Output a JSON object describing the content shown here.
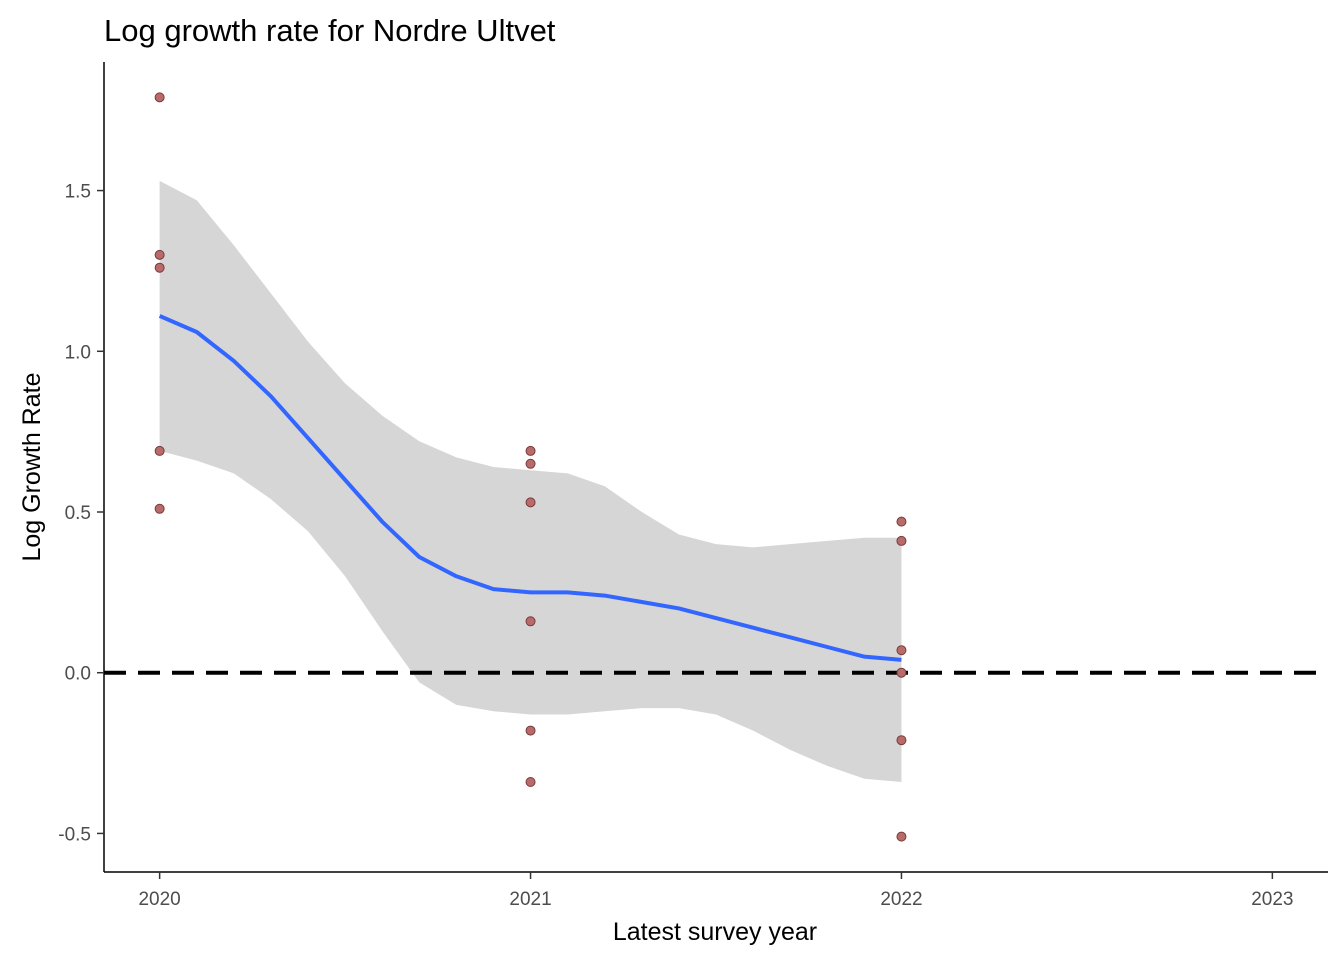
{
  "chart_data": {
    "type": "scatter",
    "title": "Log growth rate for Nordre Ultvet",
    "xlabel": "Latest survey year",
    "ylabel": "Log Growth Rate",
    "xlim": [
      2019.85,
      2023.15
    ],
    "ylim": [
      -0.62,
      1.9
    ],
    "x_ticks": [
      2020,
      2021,
      2022,
      2023
    ],
    "x_tick_labels": [
      "2020",
      "2021",
      "2022",
      "2023"
    ],
    "y_ticks": [
      -0.5,
      0.0,
      0.5,
      1.0,
      1.5
    ],
    "y_tick_labels": [
      "-0.5",
      "0.0",
      "0.5",
      "1.0",
      "1.5"
    ],
    "grid": false,
    "legend": "none",
    "points": {
      "color": "#b86b6b",
      "stroke": "#7a3a3a",
      "x": [
        2020,
        2020,
        2020,
        2020,
        2020,
        2021,
        2021,
        2021,
        2021,
        2021,
        2021,
        2022,
        2022,
        2022,
        2022,
        2022,
        2022
      ],
      "y": [
        1.79,
        1.3,
        1.26,
        0.69,
        0.51,
        0.69,
        0.65,
        0.53,
        0.16,
        -0.18,
        -0.34,
        0.47,
        0.41,
        0.07,
        0.0,
        -0.21,
        -0.51
      ]
    },
    "smooth": {
      "color": "#3366ff",
      "band_color": "#d6d6d6",
      "x": [
        2020.0,
        2020.1,
        2020.2,
        2020.3,
        2020.4,
        2020.5,
        2020.6,
        2020.7,
        2020.8,
        2020.9,
        2021.0,
        2021.1,
        2021.2,
        2021.3,
        2021.4,
        2021.5,
        2021.6,
        2021.7,
        2021.8,
        2021.9,
        2022.0
      ],
      "y": [
        1.11,
        1.06,
        0.97,
        0.86,
        0.73,
        0.6,
        0.47,
        0.36,
        0.3,
        0.26,
        0.25,
        0.25,
        0.24,
        0.22,
        0.2,
        0.17,
        0.14,
        0.11,
        0.08,
        0.05,
        0.04
      ],
      "lower": [
        0.69,
        0.66,
        0.62,
        0.54,
        0.44,
        0.3,
        0.13,
        -0.03,
        -0.1,
        -0.12,
        -0.13,
        -0.13,
        -0.12,
        -0.11,
        -0.11,
        -0.13,
        -0.18,
        -0.24,
        -0.29,
        -0.33,
        -0.34
      ],
      "upper": [
        1.53,
        1.47,
        1.33,
        1.18,
        1.03,
        0.9,
        0.8,
        0.72,
        0.67,
        0.64,
        0.63,
        0.62,
        0.58,
        0.5,
        0.43,
        0.4,
        0.39,
        0.4,
        0.41,
        0.42,
        0.42
      ]
    },
    "reference_line": {
      "y": 0,
      "style": "dashed",
      "color": "#000000"
    }
  }
}
